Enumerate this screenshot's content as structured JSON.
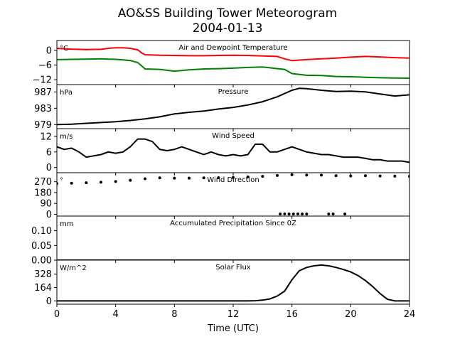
{
  "figure": {
    "title_line1": "AO&SS Building Tower Meteorogram",
    "title_line2": "2004-01-13",
    "xlabel": "Time (UTC)",
    "xlim": [
      0,
      24
    ],
    "xticks": [
      0,
      4,
      8,
      12,
      16,
      20,
      24
    ]
  },
  "chart_data": [
    {
      "type": "line",
      "title": "Air and Dewpoint Temperature",
      "ylabel": "°C",
      "ylim": [
        -14,
        4
      ],
      "yticks": [
        0,
        -6,
        -12
      ],
      "x": [
        0,
        1,
        2,
        3,
        3.5,
        4,
        4.5,
        5,
        5.5,
        5.8,
        6,
        7,
        8,
        9,
        10,
        11,
        12,
        13,
        14,
        15,
        15.5,
        16,
        17,
        18,
        19,
        20,
        21,
        22,
        23,
        24
      ],
      "series": [
        {
          "color": "#ff0000",
          "values": [
            0.8,
            0.5,
            0.3,
            0.4,
            0.8,
            1.0,
            1.0,
            0.8,
            0.2,
            -1.2,
            -1.8,
            -2.0,
            -2.1,
            -2.2,
            -2.2,
            -2.1,
            -2.0,
            -2.1,
            -2.3,
            -2.5,
            -3.5,
            -4.2,
            -3.8,
            -3.5,
            -3.2,
            -2.8,
            -2.5,
            -2.7,
            -3.0,
            -3.2
          ]
        },
        {
          "color": "#008000",
          "values": [
            -3.8,
            -3.7,
            -3.6,
            -3.5,
            -3.6,
            -3.7,
            -3.9,
            -4.2,
            -5.0,
            -6.5,
            -7.6,
            -7.8,
            -8.5,
            -8.0,
            -7.6,
            -7.5,
            -7.3,
            -7.0,
            -6.8,
            -7.5,
            -7.8,
            -9.5,
            -10.2,
            -10.3,
            -10.7,
            -10.8,
            -11.0,
            -11.2,
            -11.3,
            -11.4
          ]
        }
      ]
    },
    {
      "type": "line",
      "title": "Pressure",
      "ylabel": "hPa",
      "ylim": [
        978,
        988.8
      ],
      "yticks": [
        987,
        983,
        979
      ],
      "x": [
        0,
        1,
        2,
        3,
        4,
        5,
        6,
        7,
        8,
        9,
        10,
        11,
        12,
        13,
        14,
        15,
        16,
        16.5,
        17,
        18,
        19,
        20,
        21,
        22,
        23,
        24
      ],
      "series": [
        {
          "color": "#000000",
          "values": [
            979.0,
            979.1,
            979.3,
            979.5,
            979.7,
            980.0,
            980.4,
            980.9,
            981.6,
            982.0,
            982.3,
            982.8,
            983.2,
            983.8,
            984.6,
            985.8,
            987.4,
            987.9,
            987.8,
            987.4,
            987.1,
            987.2,
            987.0,
            986.5,
            986.0,
            986.3
          ]
        }
      ]
    },
    {
      "type": "line",
      "title": "Wind Speed",
      "ylabel": "m/s",
      "ylim": [
        -2,
        15
      ],
      "yticks": [
        12,
        6,
        0
      ],
      "x": [
        0,
        0.5,
        1,
        1.5,
        2,
        2.5,
        3,
        3.5,
        4,
        4.5,
        5,
        5.5,
        6,
        6.5,
        7,
        7.5,
        8,
        8.5,
        9,
        9.5,
        10,
        10.5,
        11,
        11.5,
        12,
        12.5,
        13,
        13.5,
        14,
        14.5,
        15,
        15.5,
        16,
        16.5,
        17,
        17.5,
        18,
        18.5,
        19,
        19.5,
        20,
        20.5,
        21,
        21.5,
        22,
        22.5,
        23,
        23.5,
        24
      ],
      "series": [
        {
          "color": "#000000",
          "values": [
            8,
            7,
            7.5,
            6,
            4,
            4.5,
            5,
            6,
            5.5,
            6,
            8,
            11,
            11,
            10,
            7,
            6.5,
            7,
            8,
            7,
            6,
            5,
            6,
            5,
            4.5,
            5,
            4.5,
            5,
            9,
            9,
            6,
            6,
            7,
            8,
            7,
            6,
            5.5,
            5,
            5,
            4.5,
            4,
            4,
            4,
            3.5,
            3,
            3,
            2.5,
            2.5,
            2.5,
            2
          ]
        }
      ]
    },
    {
      "type": "scatter",
      "title": "Wind Direction",
      "ylabel": "°",
      "ylim": [
        -15,
        345
      ],
      "yticks": [
        270,
        180,
        90,
        0
      ],
      "x": [
        0,
        1,
        2,
        3,
        4,
        5,
        6,
        7,
        8,
        9,
        10,
        11,
        12,
        13,
        14,
        15,
        16,
        17,
        18,
        19,
        20,
        21,
        22,
        23,
        24,
        15.2,
        15.5,
        15.8,
        16.1,
        16.4,
        16.7,
        17.0,
        18.5,
        18.8,
        19.6
      ],
      "series": [
        {
          "color": "#000000",
          "values": [
            255,
            258,
            262,
            266,
            272,
            282,
            295,
            302,
            300,
            300,
            302,
            304,
            305,
            310,
            315,
            322,
            328,
            325,
            325,
            320,
            318,
            320,
            318,
            316,
            315,
            2,
            3,
            2,
            2,
            3,
            2,
            2,
            2,
            2,
            2
          ]
        }
      ]
    },
    {
      "type": "line",
      "title": "Accumulated Precipitation Since 0Z",
      "ylabel": "mm",
      "ylim": [
        0,
        0.15
      ],
      "yticks": [
        0.1,
        0.05,
        0.0
      ],
      "ytick_labels": [
        "0.10",
        "0.05",
        "0.00"
      ],
      "x": [
        0,
        24
      ],
      "series": [
        {
          "color": "#000000",
          "values": [
            0,
            0
          ]
        }
      ]
    },
    {
      "type": "line",
      "title": "Solar Flux",
      "ylabel": "W/m^2",
      "ylim": [
        -40,
        500
      ],
      "yticks": [
        328,
        164,
        0
      ],
      "x": [
        0,
        13,
        13.5,
        14,
        14.5,
        15,
        15.5,
        16,
        16.5,
        17,
        17.5,
        18,
        18.5,
        19,
        19.5,
        20,
        20.5,
        21,
        21.5,
        22,
        22.5,
        23,
        24
      ],
      "series": [
        {
          "color": "#000000",
          "values": [
            0,
            0,
            3,
            10,
            25,
            60,
            120,
            260,
            370,
            410,
            430,
            440,
            430,
            410,
            385,
            355,
            310,
            250,
            175,
            90,
            20,
            0,
            0
          ]
        }
      ]
    }
  ]
}
